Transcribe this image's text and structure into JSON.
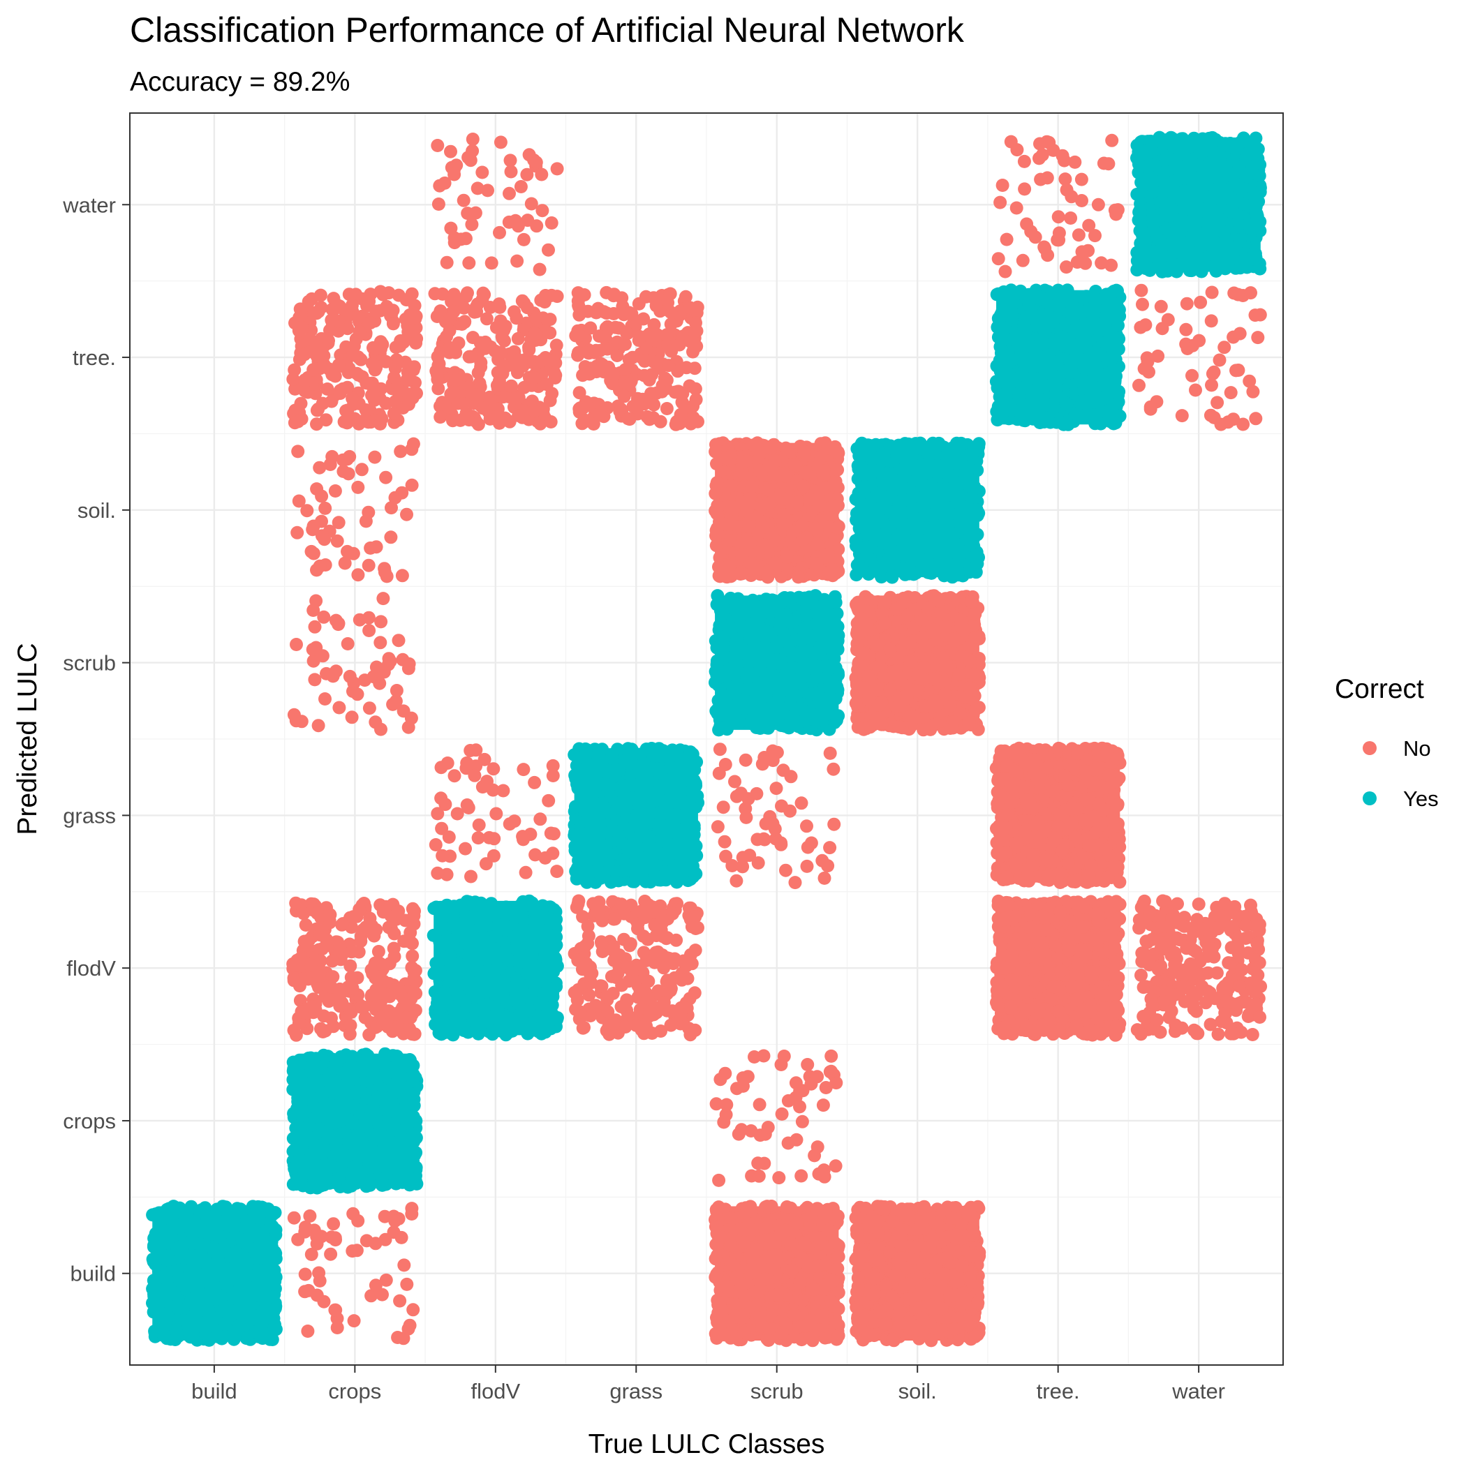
{
  "title": "Classification Performance of Artificial Neural Network",
  "subtitle": "Accuracy = 89.2%",
  "chart_data": {
    "type": "scatter",
    "subtype": "jittered confusion matrix",
    "title": "Classification Performance of Artificial Neural Network",
    "subtitle": "Accuracy = 89.2%",
    "xlabel": "True LULC Classes",
    "ylabel": "Predicted LULC",
    "x_categories": [
      "build",
      "crops",
      "flodV",
      "grass",
      "scrub",
      "soil.",
      "tree.",
      "water"
    ],
    "y_categories": [
      "build",
      "crops",
      "flodV",
      "grass",
      "scrub",
      "soil.",
      "tree.",
      "water"
    ],
    "grid": true,
    "legend": {
      "title": "Correct",
      "position": "right",
      "entries": [
        {
          "label": "No",
          "color": "#F8766D"
        },
        {
          "label": "Yes",
          "color": "#00BFC4"
        }
      ]
    },
    "cells": [
      {
        "true": "build",
        "predicted": "build",
        "correct": "Yes",
        "density": "dense"
      },
      {
        "true": "crops",
        "predicted": "build",
        "correct": "No",
        "density": "sparse"
      },
      {
        "true": "scrub",
        "predicted": "build",
        "correct": "No",
        "density": "dense"
      },
      {
        "true": "soil.",
        "predicted": "build",
        "correct": "No",
        "density": "dense"
      },
      {
        "true": "crops",
        "predicted": "crops",
        "correct": "Yes",
        "density": "dense"
      },
      {
        "true": "scrub",
        "predicted": "crops",
        "correct": "No",
        "density": "sparse"
      },
      {
        "true": "crops",
        "predicted": "flodV",
        "correct": "No",
        "density": "medium"
      },
      {
        "true": "flodV",
        "predicted": "flodV",
        "correct": "Yes",
        "density": "dense"
      },
      {
        "true": "grass",
        "predicted": "flodV",
        "correct": "No",
        "density": "medium"
      },
      {
        "true": "tree.",
        "predicted": "flodV",
        "correct": "No",
        "density": "dense"
      },
      {
        "true": "water",
        "predicted": "flodV",
        "correct": "No",
        "density": "medium"
      },
      {
        "true": "flodV",
        "predicted": "grass",
        "correct": "No",
        "density": "sparse"
      },
      {
        "true": "grass",
        "predicted": "grass",
        "correct": "Yes",
        "density": "dense"
      },
      {
        "true": "scrub",
        "predicted": "grass",
        "correct": "No",
        "density": "sparse"
      },
      {
        "true": "tree.",
        "predicted": "grass",
        "correct": "No",
        "density": "dense"
      },
      {
        "true": "crops",
        "predicted": "scrub",
        "correct": "No",
        "density": "sparse"
      },
      {
        "true": "scrub",
        "predicted": "scrub",
        "correct": "Yes",
        "density": "dense"
      },
      {
        "true": "soil.",
        "predicted": "scrub",
        "correct": "No",
        "density": "dense"
      },
      {
        "true": "crops",
        "predicted": "soil.",
        "correct": "No",
        "density": "sparse"
      },
      {
        "true": "scrub",
        "predicted": "soil.",
        "correct": "No",
        "density": "dense"
      },
      {
        "true": "soil.",
        "predicted": "soil.",
        "correct": "Yes",
        "density": "dense"
      },
      {
        "true": "crops",
        "predicted": "tree.",
        "correct": "No",
        "density": "medium"
      },
      {
        "true": "flodV",
        "predicted": "tree.",
        "correct": "No",
        "density": "medium"
      },
      {
        "true": "grass",
        "predicted": "tree.",
        "correct": "No",
        "density": "medium"
      },
      {
        "true": "tree.",
        "predicted": "tree.",
        "correct": "Yes",
        "density": "dense"
      },
      {
        "true": "water",
        "predicted": "tree.",
        "correct": "No",
        "density": "sparse"
      },
      {
        "true": "flodV",
        "predicted": "water",
        "correct": "No",
        "density": "sparse"
      },
      {
        "true": "tree.",
        "predicted": "water",
        "correct": "No",
        "density": "sparse"
      },
      {
        "true": "water",
        "predicted": "water",
        "correct": "Yes",
        "density": "dense"
      }
    ]
  }
}
